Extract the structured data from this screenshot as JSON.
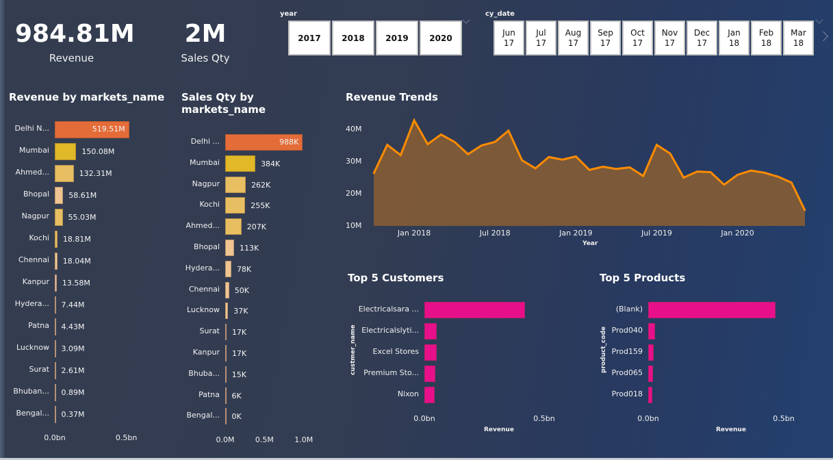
{
  "kpis": {
    "revenue": {
      "value": "984.81M",
      "label": "Revenue"
    },
    "sales_qty": {
      "value": "2M",
      "label": "Sales Qty"
    }
  },
  "slicers": {
    "year": {
      "title": "year",
      "options": [
        "2017",
        "2018",
        "2019",
        "2020"
      ]
    },
    "cy_date": {
      "title": "cy_date",
      "options": [
        "Jun\n17",
        "Jul\n17",
        "Aug\n17",
        "Sep\n17",
        "Oct\n17",
        "Nov\n17",
        "Dec\n17",
        "Jan\n18",
        "Feb\n18",
        "Mar\n18"
      ]
    }
  },
  "colors": {
    "top1": "#E46C38",
    "top2": "#E0B828",
    "mid": "#E8BE62",
    "light": "#F0C592",
    "pale": "#EFBFA0",
    "line": "#FF8C00",
    "area": "#835C35",
    "pink": "#E8108A"
  },
  "chart_data": [
    {
      "id": "revenue_by_market",
      "type": "bar",
      "orientation": "horizontal",
      "title": "Revenue by markets_name",
      "categories": [
        "Delhi N...",
        "Mumbai",
        "Ahmed...",
        "Bhopal",
        "Nagpur",
        "Kochi",
        "Chennai",
        "Kanpur",
        "Hydera...",
        "Patna",
        "Lucknow",
        "Surat",
        "Bhuban...",
        "Bengal..."
      ],
      "values": [
        519.51,
        150.08,
        132.31,
        58.61,
        55.03,
        18.81,
        18.04,
        13.58,
        7.44,
        4.43,
        3.09,
        2.61,
        0.89,
        0.37
      ],
      "labels": [
        "519.51M",
        "150.08M",
        "132.31M",
        "58.61M",
        "55.03M",
        "18.81M",
        "18.04M",
        "13.58M",
        "7.44M",
        "4.43M",
        "3.09M",
        "2.61M",
        "0.89M",
        "0.37M"
      ],
      "bar_colors": [
        "top1",
        "top2",
        "mid",
        "light",
        "mid",
        "mid",
        "light",
        "pale",
        "pale",
        "pale",
        "pale",
        "pale",
        "pale",
        "pale"
      ],
      "unit": "M",
      "xlim": [
        0,
        650
      ],
      "xticks": [
        {
          "value": 0,
          "label": "0.0bn"
        },
        {
          "value": 500,
          "label": "0.5bn"
        }
      ]
    },
    {
      "id": "sales_qty_by_market",
      "type": "bar",
      "orientation": "horizontal",
      "title": "Sales Qty by markets_name",
      "categories": [
        "Delhi ...",
        "Mumbai",
        "Nagpur",
        "Kochi",
        "Ahmed...",
        "Bhopal",
        "Hydera...",
        "Chennai",
        "Lucknow",
        "Surat",
        "Kanpur",
        "Bhuba...",
        "Patna",
        "Bengal..."
      ],
      "values": [
        988,
        384,
        262,
        255,
        207,
        113,
        78,
        50,
        37,
        17,
        17,
        15,
        6,
        0
      ],
      "labels": [
        "988K",
        "384K",
        "262K",
        "255K",
        "207K",
        "113K",
        "78K",
        "50K",
        "37K",
        "17K",
        "17K",
        "15K",
        "6K",
        "0K"
      ],
      "bar_colors": [
        "top1",
        "top2",
        "mid",
        "mid",
        "mid",
        "light",
        "light",
        "light",
        "light",
        "pale",
        "pale",
        "pale",
        "pale",
        "pale"
      ],
      "unit": "K",
      "xlim": [
        0,
        1150
      ],
      "xticks": [
        {
          "value": 0,
          "label": "0.0M"
        },
        {
          "value": 500,
          "label": "0.5M"
        },
        {
          "value": 1000,
          "label": "1.0M"
        }
      ]
    },
    {
      "id": "revenue_trends",
      "type": "area",
      "title": "Revenue Trends",
      "xlabel": "Year",
      "ylabel": "",
      "x": [
        "2017-10",
        "2017-11",
        "2017-12",
        "2018-01",
        "2018-02",
        "2018-03",
        "2018-04",
        "2018-05",
        "2018-06",
        "2018-07",
        "2018-08",
        "2018-09",
        "2018-10",
        "2018-11",
        "2018-12",
        "2019-01",
        "2019-02",
        "2019-03",
        "2019-04",
        "2019-05",
        "2019-06",
        "2019-07",
        "2019-08",
        "2019-09",
        "2019-10",
        "2019-11",
        "2019-12",
        "2020-01",
        "2020-02",
        "2020-03",
        "2020-04",
        "2020-05",
        "2020-06"
      ],
      "values": [
        26.3,
        35.2,
        32.0,
        42.8,
        35.4,
        38.4,
        36.1,
        32.3,
        35.0,
        36.1,
        39.6,
        30.4,
        27.9,
        31.4,
        30.6,
        31.6,
        27.4,
        28.4,
        27.7,
        28.2,
        25.5,
        35.2,
        32.5,
        25.0,
        26.9,
        26.7,
        22.8,
        25.9,
        27.2,
        26.5,
        25.3,
        23.5,
        14.8
      ],
      "unit": "M",
      "ylim": [
        10,
        45
      ],
      "yticks": [
        {
          "value": 10,
          "label": "10M"
        },
        {
          "value": 20,
          "label": "20M"
        },
        {
          "value": 30,
          "label": "30M"
        },
        {
          "value": 40,
          "label": "40M"
        }
      ],
      "xticks": [
        {
          "index": 3,
          "label": "Jan 2018"
        },
        {
          "index": 9,
          "label": "Jul 2018"
        },
        {
          "index": 15,
          "label": "Jan 2019"
        },
        {
          "index": 21,
          "label": "Jul 2019"
        },
        {
          "index": 27,
          "label": "Jan 2020"
        }
      ],
      "grid": false
    },
    {
      "id": "top5_customers",
      "type": "bar",
      "orientation": "horizontal",
      "title": "Top 5 Customers",
      "ylabel": "custmer_name",
      "xlabel": "Revenue",
      "categories": [
        "Electricalsara ...",
        "Electricalslyti...",
        "Excel Stores",
        "Premium Sto...",
        "Nixon"
      ],
      "values": [
        0.42,
        0.05,
        0.05,
        0.045,
        0.044
      ],
      "unit": "bn",
      "xlim": [
        0,
        0.5
      ],
      "xticks": [
        {
          "value": 0,
          "label": "0.0bn"
        },
        {
          "value": 0.5,
          "label": "0.5bn"
        }
      ]
    },
    {
      "id": "top5_products",
      "type": "bar",
      "orientation": "horizontal",
      "title": "Top 5 Products",
      "ylabel": "product_code",
      "xlabel": "Revenue",
      "categories": [
        "(Blank)",
        "Prod040",
        "Prod159",
        "Prod065",
        "Prod018"
      ],
      "values": [
        0.47,
        0.025,
        0.019,
        0.017,
        0.016
      ],
      "unit": "bn",
      "xlim": [
        0,
        0.5
      ],
      "xticks": [
        {
          "value": 0,
          "label": "0.0bn"
        },
        {
          "value": 0.5,
          "label": "0.5bn"
        }
      ]
    }
  ]
}
